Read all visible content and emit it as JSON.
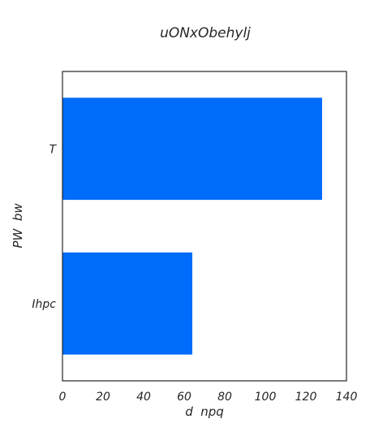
{
  "chart_data": {
    "type": "bar",
    "orientation": "horizontal",
    "title": "uONxObehylj",
    "xlabel": "d  npq",
    "ylabel": "PW  bw",
    "categories": [
      "T",
      "Ihpc"
    ],
    "values": [
      128,
      64
    ],
    "xlim": [
      0,
      140
    ],
    "xticks": [
      0,
      20,
      40,
      60,
      80,
      100,
      120,
      140
    ],
    "bar_color": "#006cfc",
    "grid": false
  }
}
